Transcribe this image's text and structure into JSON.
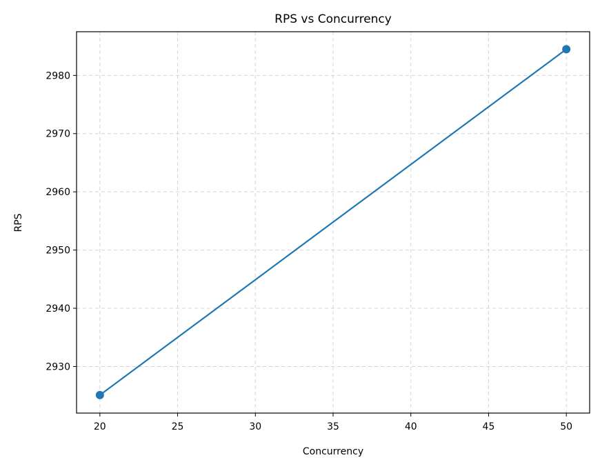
{
  "chart_data": {
    "type": "line",
    "title": "RPS vs Concurrency",
    "xlabel": "Concurrency",
    "ylabel": "RPS",
    "xlim": [
      18.5,
      51.5
    ],
    "ylim": [
      2922.0,
      2987.5
    ],
    "xticks": [
      20,
      25,
      30,
      35,
      40,
      45,
      50
    ],
    "yticks": [
      2930,
      2940,
      2950,
      2960,
      2970,
      2980
    ],
    "grid": true,
    "series": [
      {
        "color": "#1f77b4",
        "marker": "circle",
        "points": [
          {
            "x": 20,
            "y": 2925.1
          },
          {
            "x": 50,
            "y": 2984.5
          }
        ]
      }
    ]
  }
}
